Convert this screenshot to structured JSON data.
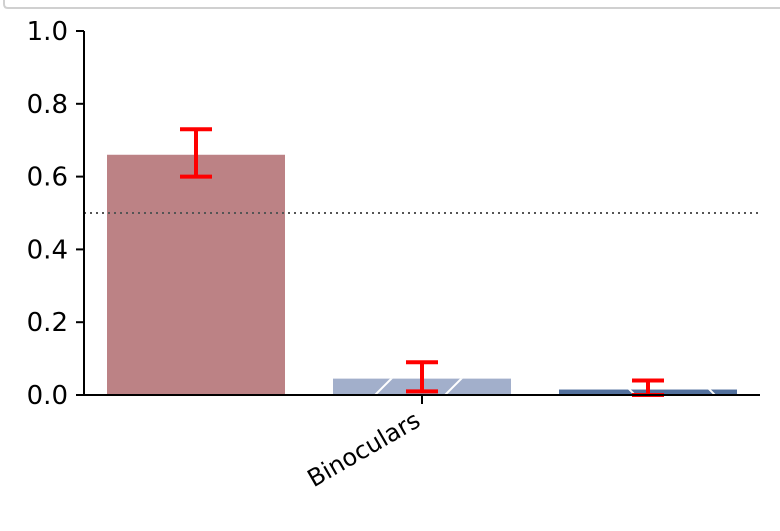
{
  "chart_data": {
    "type": "bar",
    "categories": [
      "Binoculars"
    ],
    "series": [
      {
        "value": 0.66,
        "err_low": 0.6,
        "err_high": 0.73,
        "color": "#bc8285",
        "hatch": false
      },
      {
        "value": 0.045,
        "err_low": 0.01,
        "err_high": 0.09,
        "color": "#a2afcb",
        "hatch": true
      },
      {
        "value": 0.015,
        "err_low": 0.0,
        "err_high": 0.04,
        "color": "#52709d",
        "hatch": true
      }
    ],
    "ylim": [
      0,
      1.0
    ],
    "yticks": [
      {
        "value": 0.0,
        "label": "0.0"
      },
      {
        "value": 0.2,
        "label": "0.2"
      },
      {
        "value": 0.4,
        "label": "0.4"
      },
      {
        "value": 0.6,
        "label": "0.6"
      },
      {
        "value": 0.8,
        "label": "0.8"
      },
      {
        "value": 1.0,
        "label": "1.0"
      }
    ],
    "reference_line": {
      "value": 0.5,
      "style": "dotted",
      "color": "#555555"
    },
    "error_bar_color": "#ff0000",
    "grid": false,
    "legend": "none"
  }
}
